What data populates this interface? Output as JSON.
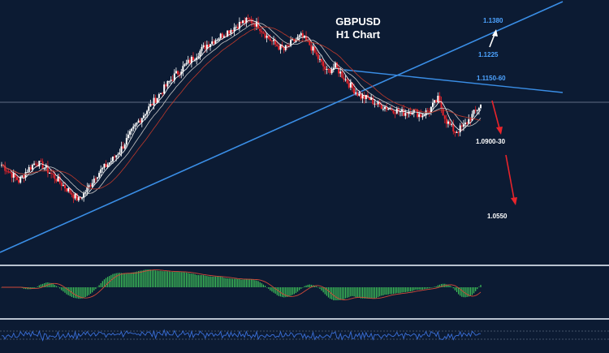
{
  "header": {
    "title_line1": "GBPUSD",
    "title_line2": "H1 Chart"
  },
  "colors": {
    "background": "#0c1b33",
    "bull_candle": "#ffffff",
    "bear_candle": "#e8242b",
    "trendline": "#3a8ee6",
    "level_label": "#4da3ff",
    "up_arrow": "#ffffff",
    "down_arrow": "#e8242b",
    "macd_hist": "#3fc45a",
    "macd_signal": "#d24a3a",
    "rsi_line": "#3a6fd8",
    "panel_separator": "#b8c2cf"
  },
  "levels": {
    "upper": "1.1380",
    "mid_target": "1.1225",
    "resistance": "1.1150-60",
    "support": "1.0900-30",
    "lower_target": "1.0550"
  },
  "chart_data": {
    "type": "line",
    "title": "GBPUSD H1 Chart",
    "instrument": "GBPUSD",
    "timeframe": "H1",
    "price_close_approx": [
      1.092,
      1.089,
      1.086,
      1.09,
      1.093,
      1.091,
      1.088,
      1.085,
      1.082,
      1.079,
      1.083,
      1.088,
      1.091,
      1.094,
      1.098,
      1.103,
      1.108,
      1.112,
      1.116,
      1.12,
      1.124,
      1.127,
      1.13,
      1.133,
      1.136,
      1.138,
      1.14,
      1.142,
      1.144,
      1.145,
      1.143,
      1.139,
      1.136,
      1.134,
      1.137,
      1.139,
      1.136,
      1.131,
      1.126,
      1.128,
      1.124,
      1.12,
      1.117,
      1.116,
      1.114,
      1.113,
      1.112,
      1.111,
      1.112,
      1.11,
      1.112,
      1.116,
      1.108,
      1.104,
      1.106,
      1.11,
      1.114
    ],
    "annotations": [
      "1.1380",
      "1.1225",
      "1.1150-60",
      "1.0900-30",
      "1.0550"
    ],
    "indicators": [
      "MACD histogram",
      "RSI"
    ]
  }
}
